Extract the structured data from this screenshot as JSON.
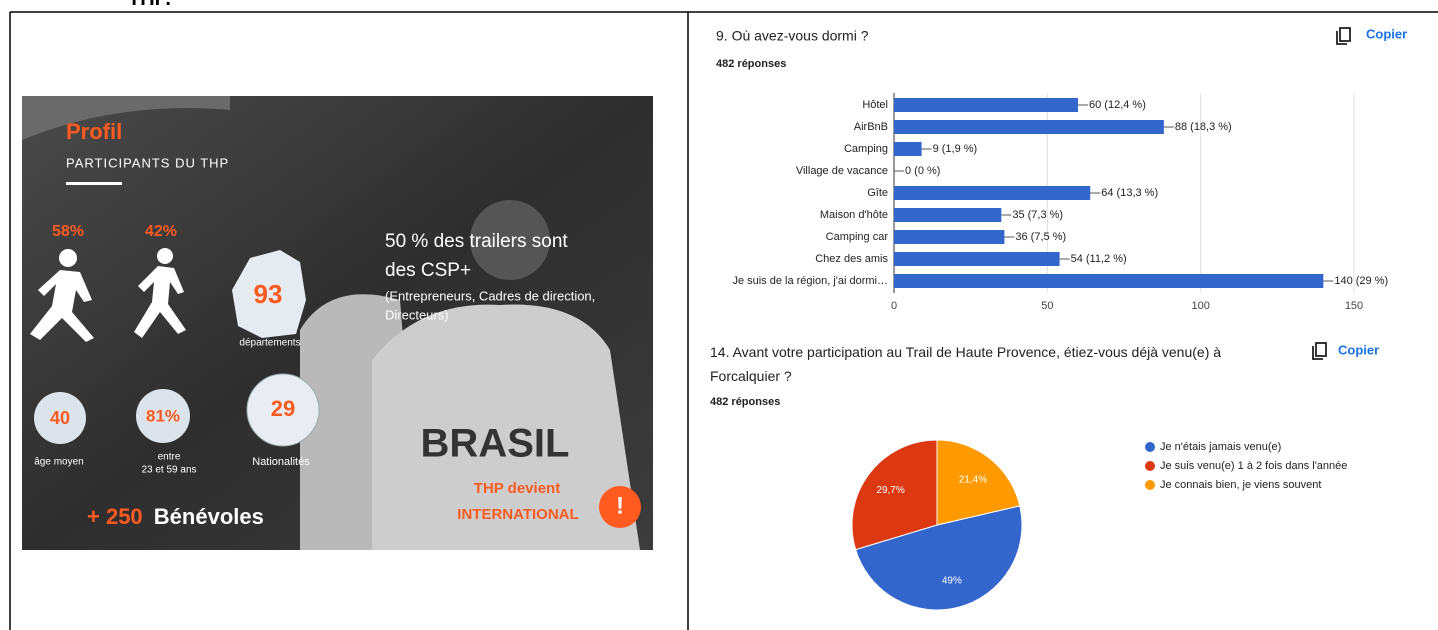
{
  "header_fragment": "THP.",
  "infographic": {
    "title": "Profil",
    "subtitle": "PARTICIPANTS DU THP",
    "share_men": "58%",
    "share_women": "42%",
    "csp_line1": "50 % des trailers sont",
    "csp_line2": "des CSP+",
    "csp_detail_line1": "(Entrepreneurs, Cadres de direction,",
    "csp_detail_line2": "Directeurs)",
    "departments_value": "93",
    "departments_label": "départements",
    "age_value": "40",
    "age_label": "âge moyen",
    "age_range_value": "81%",
    "age_range_line1": "entre",
    "age_range_line2": "23 et 59 ans",
    "nationalities_value": "29",
    "nationalities_label": "Nationalités",
    "volunteers_count": "+ 250",
    "volunteers_label": "Bénévoles",
    "shirt_text": "BRASIL",
    "international_line1": "THP devient",
    "international_line2": "INTERNATIONAL",
    "alert": "!"
  },
  "chart_data": [
    {
      "type": "bar",
      "orientation": "horizontal",
      "title": "9. Où avez-vous dormi ?",
      "subtitle": "482 réponses",
      "action": "Copier",
      "categories": [
        "Hôtel",
        "AirBnB",
        "Camping",
        "Village de vacance",
        "Gîte",
        "Maison d'hôte",
        "Camping car",
        "Chez des amis",
        "Je suis de la région, j'ai dormi…"
      ],
      "values": [
        60,
        88,
        9,
        0,
        64,
        35,
        36,
        54,
        140
      ],
      "value_labels": [
        "60 (12,4 %)",
        "88 (18,3 %)",
        "9 (1,9 %)",
        "0 (0 %)",
        "64 (13,3 %)",
        "35 (7,3 %)",
        "36 (7,5 %)",
        "54 (11,2 %)",
        "140 (29 %)"
      ],
      "color": "#3366cc",
      "xlim": [
        0,
        150
      ],
      "xticks": [
        0,
        50,
        100,
        150
      ],
      "grid": true
    },
    {
      "type": "pie",
      "title": "14. Avant votre participation au Trail de Haute Provence, étiez-vous déjà venu(e) à Forcalquier ?",
      "subtitle": "482 réponses",
      "action": "Copier",
      "categories": [
        "Je n'étais jamais venu(e)",
        "Je suis venu(e) 1 à 2 fois dans l'année",
        "Je connais bien, je viens souvent"
      ],
      "values": [
        49,
        29.7,
        21.4
      ],
      "value_labels": [
        "49%",
        "29,7%",
        "21,4%"
      ],
      "colors": [
        "#3366cc",
        "#dc3912",
        "#ff9900"
      ],
      "legend": "right"
    }
  ]
}
